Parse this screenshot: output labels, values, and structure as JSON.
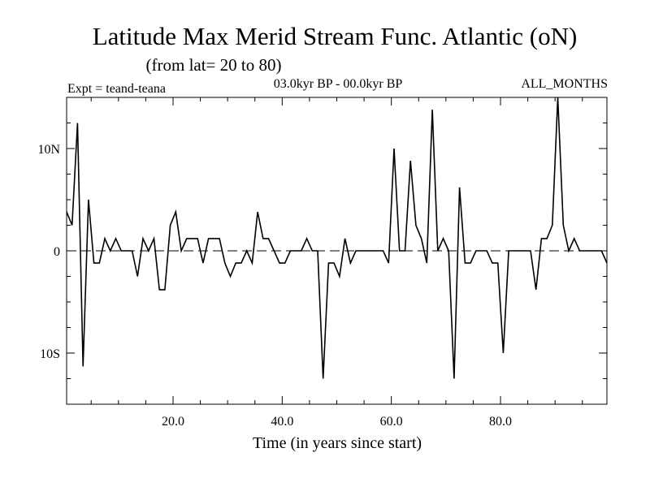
{
  "chart_data": {
    "type": "line",
    "title": "Latitude Max Merid Stream Func. Atlantic (oN)",
    "subtitle": "(from lat= 20 to 80)",
    "annotations": {
      "left": "Expt = teand-teana",
      "center": "03.0kyr BP - 00.0kyr BP",
      "right": "ALL_MONTHS"
    },
    "xlabel": "Time (in years since start)",
    "ylabel": "",
    "xlim": [
      0.5,
      99.5
    ],
    "ylim": [
      -15,
      15
    ],
    "x_ticks": [
      20,
      40,
      60,
      80
    ],
    "x_tick_labels": [
      "20.0",
      "40.0",
      "60.0",
      "80.0"
    ],
    "y_ticks": [
      -10,
      0,
      10
    ],
    "y_tick_labels": [
      "10S",
      "0",
      "10N"
    ],
    "zero_line": "dashed",
    "grid": false,
    "series": [
      {
        "name": "Latitude Max",
        "x": [
          0.5,
          1.5,
          2.5,
          3.5,
          4.5,
          5.5,
          6.5,
          7.5,
          8.5,
          9.5,
          10.5,
          11.5,
          12.5,
          13.5,
          14.5,
          15.5,
          16.5,
          17.5,
          18.5,
          19.5,
          20.5,
          21.5,
          22.5,
          23.5,
          24.5,
          25.5,
          26.5,
          27.5,
          28.5,
          29.5,
          30.5,
          31.5,
          32.5,
          33.5,
          34.5,
          35.5,
          36.5,
          37.5,
          38.5,
          39.5,
          40.5,
          41.5,
          42.5,
          43.5,
          44.5,
          45.5,
          46.5,
          47.5,
          48.5,
          49.5,
          50.5,
          51.5,
          52.5,
          53.5,
          54.5,
          55.5,
          56.5,
          57.5,
          58.5,
          59.5,
          60.5,
          61.5,
          62.5,
          63.5,
          64.5,
          65.5,
          66.5,
          67.5,
          68.5,
          69.5,
          70.5,
          71.5,
          72.5,
          73.5,
          74.5,
          75.5,
          76.5,
          77.5,
          78.5,
          79.5,
          80.5,
          81.5,
          82.5,
          83.5,
          84.5,
          85.5,
          86.5,
          87.5,
          88.5,
          89.5,
          90.5,
          91.5,
          92.5,
          93.5,
          94.5,
          95.5,
          96.5,
          97.5,
          98.5,
          99.5
        ],
        "values": [
          3.8,
          2.5,
          12.5,
          -11.3,
          5,
          -1.2,
          -1.2,
          1.2,
          0,
          1.2,
          0,
          0,
          0,
          -2.5,
          1.2,
          0,
          1.2,
          -3.8,
          -3.8,
          2.5,
          3.8,
          0,
          1.2,
          1.2,
          1.2,
          -1.2,
          1.2,
          1.2,
          1.2,
          -1.2,
          -2.5,
          -1.2,
          -1.2,
          0,
          -1.2,
          3.8,
          1.2,
          1.2,
          0,
          -1.2,
          -1.2,
          0,
          0,
          0,
          1.2,
          0,
          0,
          -12.5,
          -1.2,
          -1.2,
          -2.5,
          1.2,
          -1.2,
          0,
          0,
          0,
          0,
          0,
          0,
          -1.2,
          10,
          0,
          0,
          8.8,
          2.5,
          1.2,
          -1.2,
          13.8,
          0,
          1.2,
          0,
          -12.5,
          6.2,
          -1.2,
          -1.2,
          0,
          0,
          0,
          -1.2,
          -1.2,
          -10,
          0,
          0,
          0,
          0,
          0,
          -3.8,
          1.2,
          1.2,
          2.5,
          15,
          2.5,
          0,
          1.2,
          0,
          0,
          0,
          0,
          0,
          -1.2
        ]
      }
    ]
  }
}
